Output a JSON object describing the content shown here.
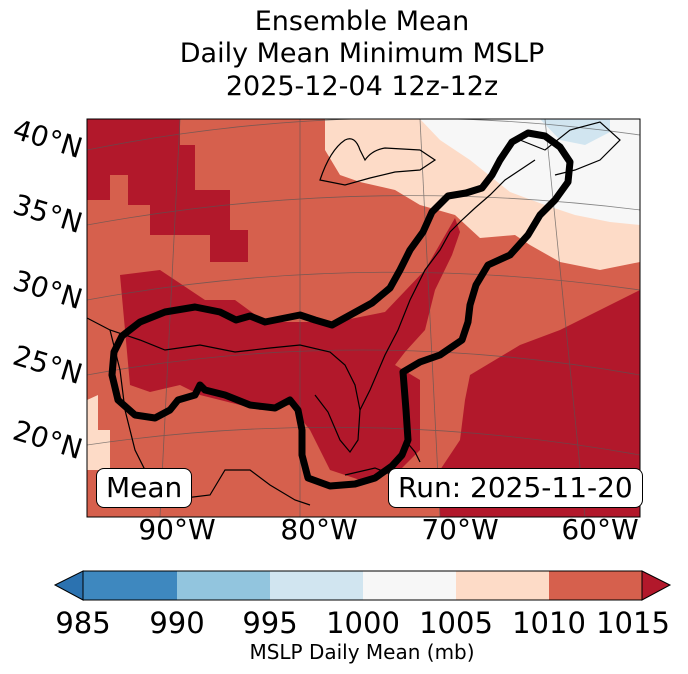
{
  "title": {
    "line1": "Ensemble Mean",
    "line2": "Daily Mean Minimum MSLP",
    "line3": "2025-12-04 12z-12z"
  },
  "map": {
    "lat_labels": [
      "40°N",
      "35°N",
      "30°N",
      "25°N",
      "20°N"
    ],
    "lon_labels": [
      "90°W",
      "80°W",
      "70°W",
      "60°W"
    ],
    "mean_label": "Mean",
    "run_label": "Run: 2025-11-20"
  },
  "colorbar": {
    "ticks": [
      "985",
      "990",
      "995",
      "1000",
      "1005",
      "1010",
      "1015"
    ],
    "label": "MSLP Daily Mean (mb)",
    "colors": [
      "#2b72b0",
      "#3e88bf",
      "#92c5de",
      "#d1e5f0",
      "#f7f7f7",
      "#fddbc7",
      "#d6604d",
      "#b2182b"
    ]
  },
  "field_colors": {
    "c1015": "#b2182b",
    "c1010": "#d6604d",
    "c1005": "#fddbc7",
    "c1000": "#f7f7f7",
    "c995": "#d1e5f0"
  }
}
